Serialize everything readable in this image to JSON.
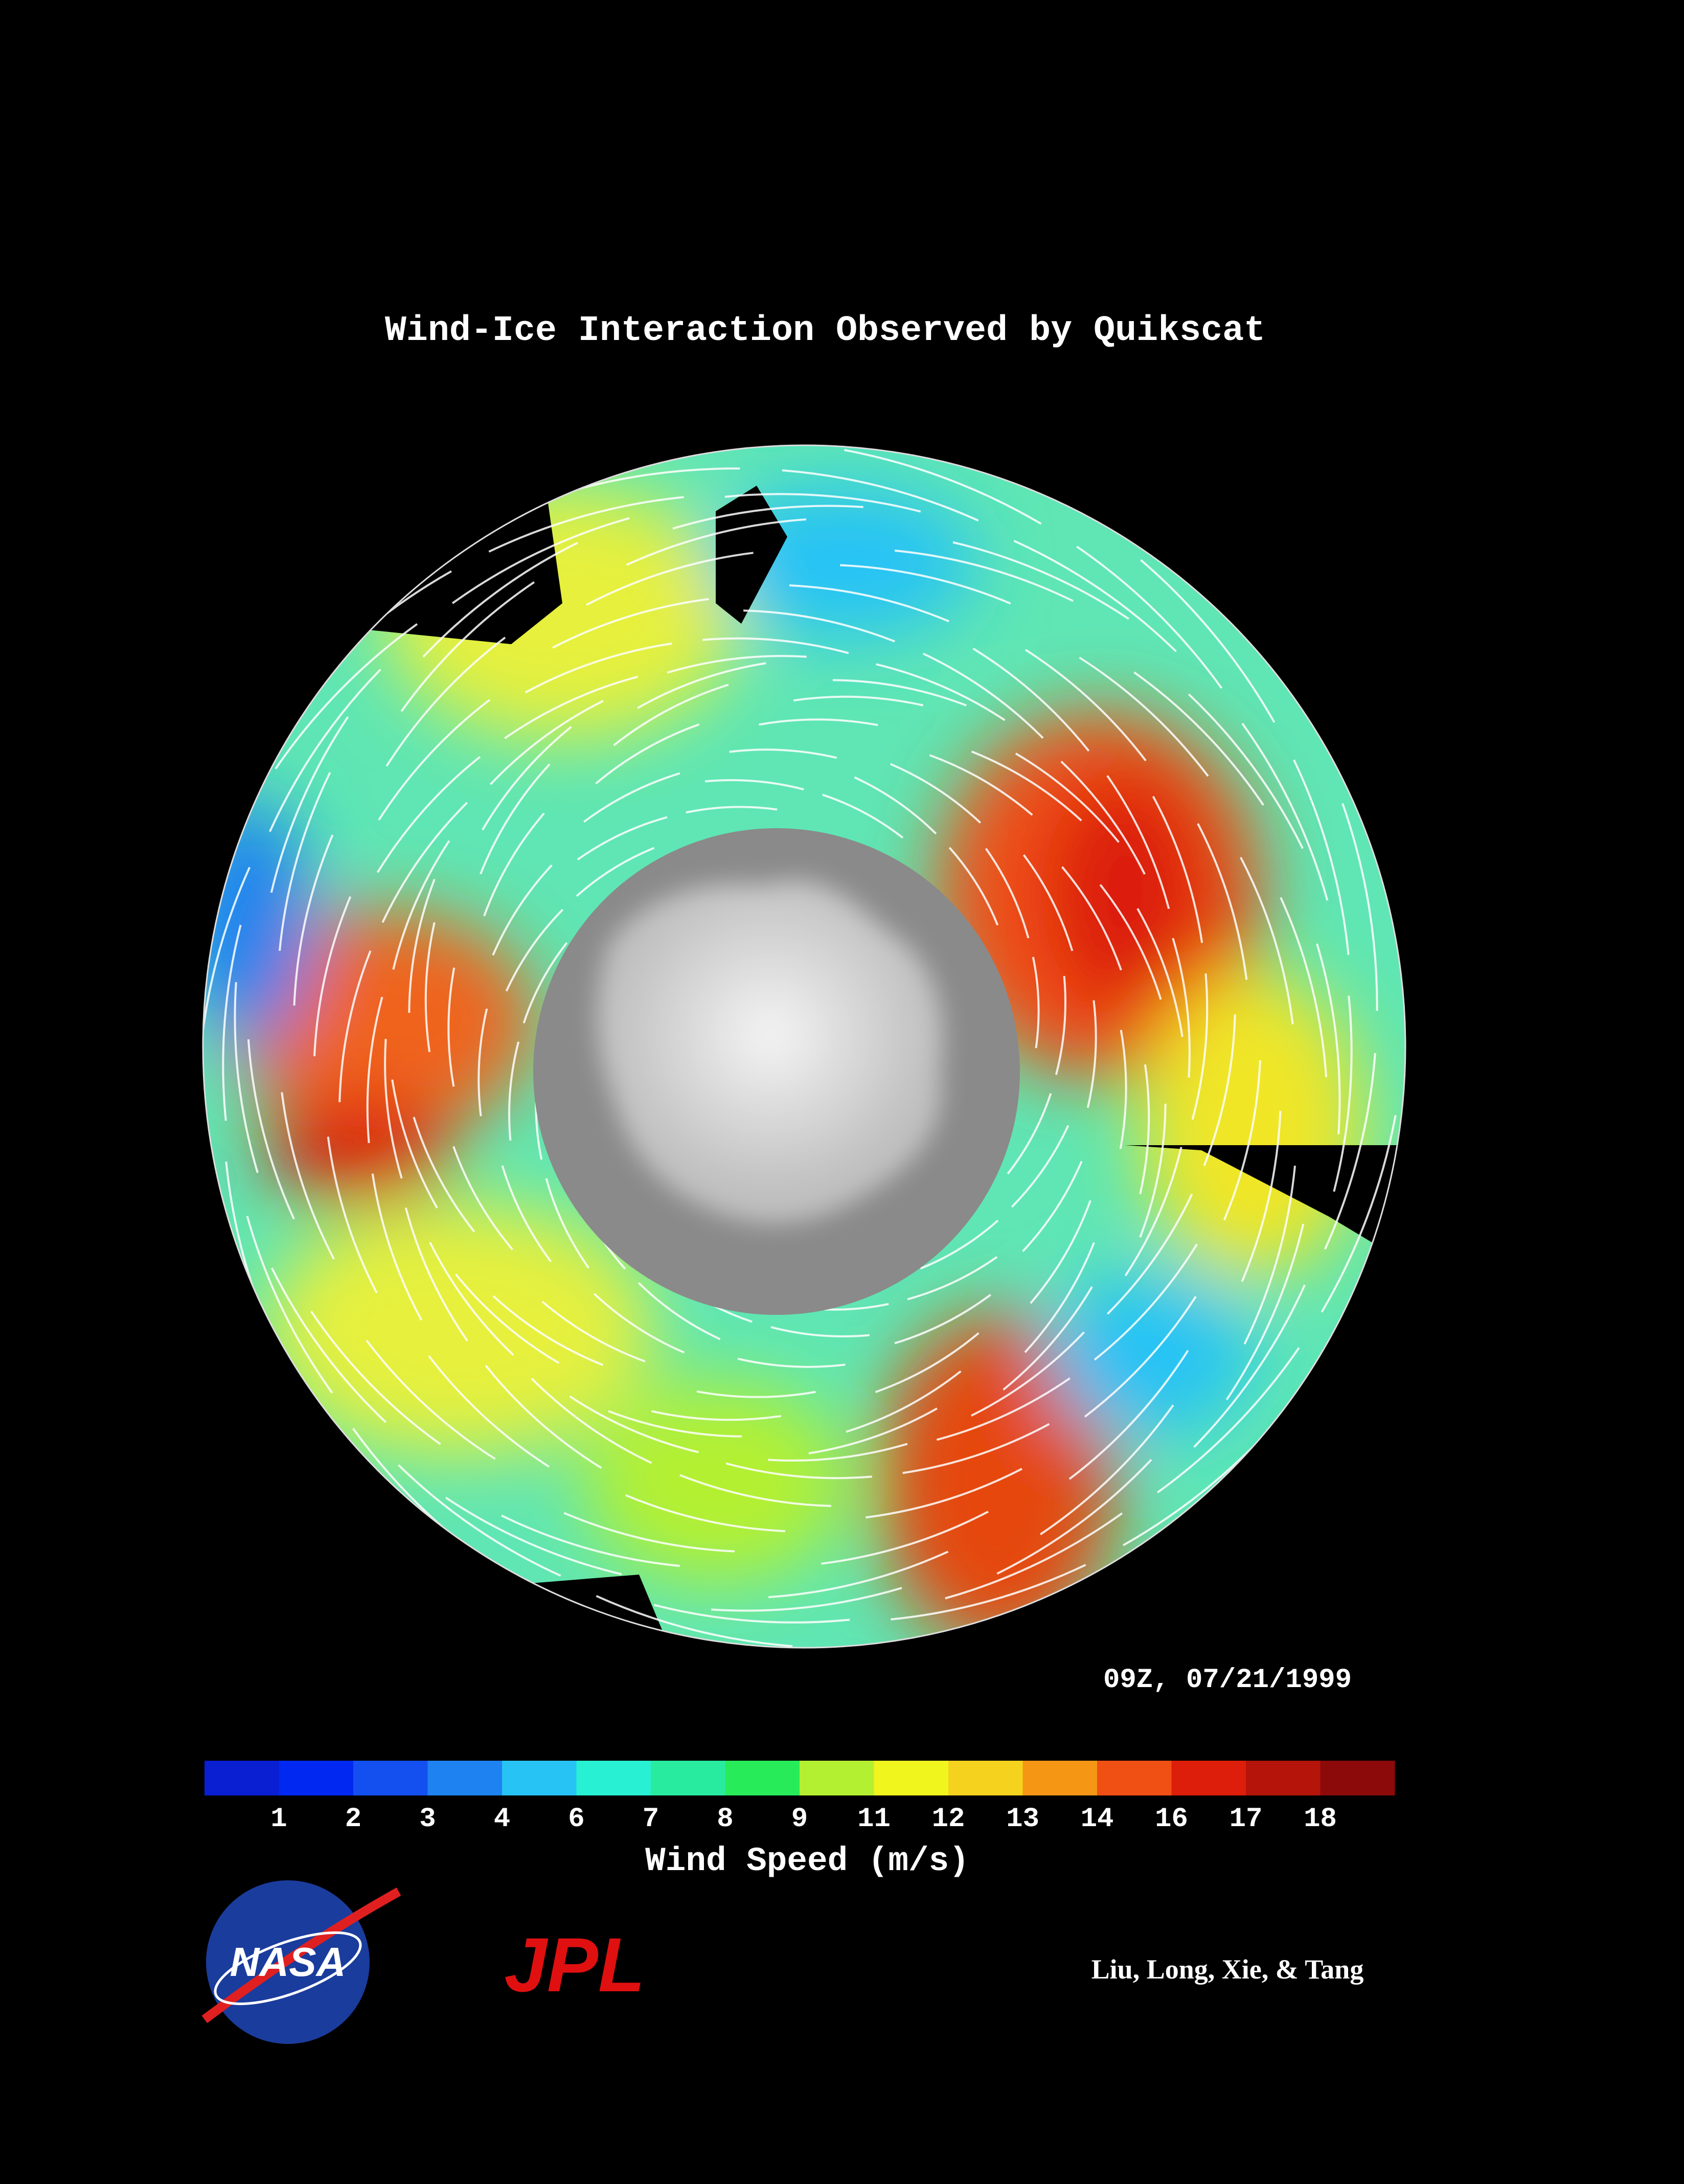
{
  "title": "Wind-Ice Interaction Observed by Quikscat",
  "timestamp": "09Z, 07/21/1999",
  "colorbar": {
    "label": "Wind Speed (m/s)",
    "ticks": [
      1,
      2,
      3,
      4,
      6,
      7,
      8,
      9,
      11,
      12,
      13,
      14,
      16,
      17,
      18
    ],
    "colors": [
      "#0a1ed2",
      "#0028f0",
      "#1450f0",
      "#1e82f0",
      "#28c3f5",
      "#28f0d2",
      "#28eba0",
      "#28eb5a",
      "#b4f032",
      "#f0f51e",
      "#f5d21e",
      "#f59614",
      "#f05014",
      "#dc1e0a",
      "#b4140a",
      "#8c0a0a"
    ]
  },
  "logos": {
    "nasa": "NASA",
    "jpl": "JPL"
  },
  "credits": "Liu, Long, Xie, & Tang"
}
